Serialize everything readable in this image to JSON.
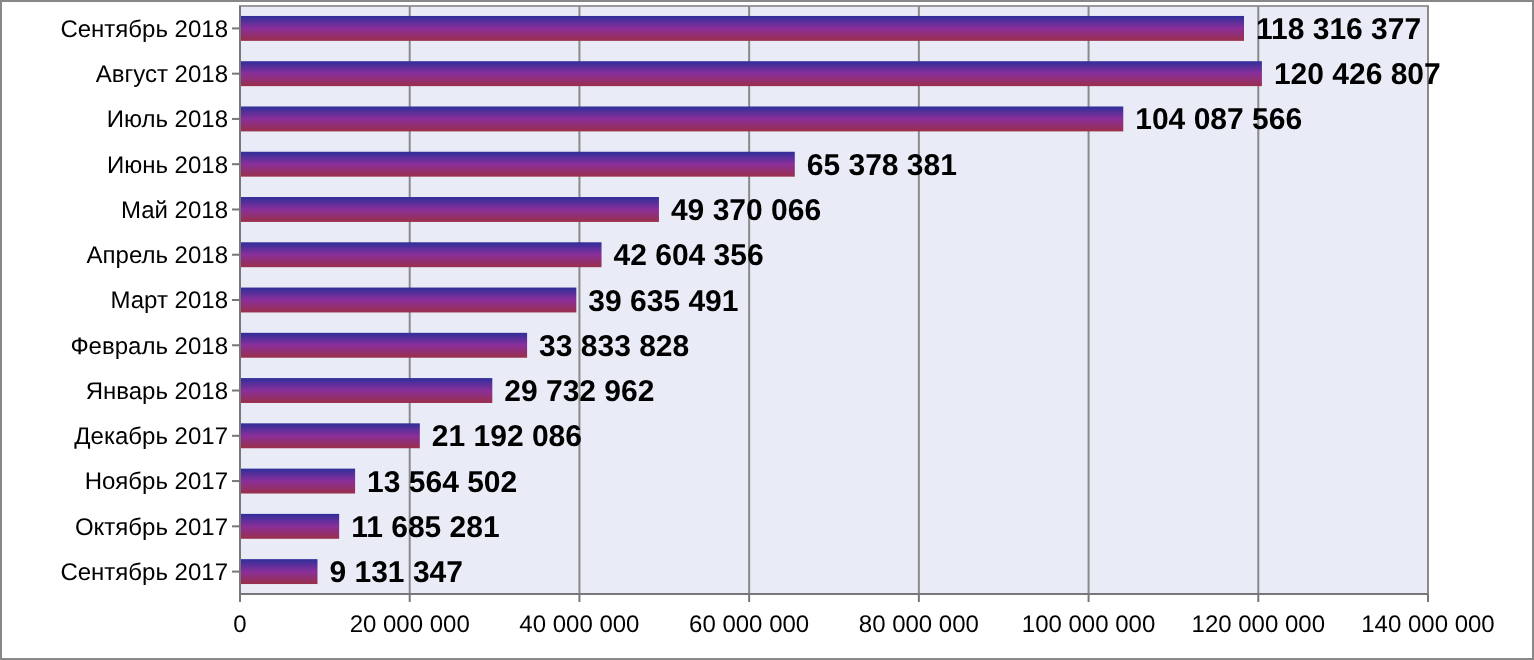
{
  "chart_data": {
    "type": "bar",
    "orientation": "horizontal",
    "categories": [
      "Сентябрь 2018",
      "Август 2018",
      "Июль 2018",
      "Июнь 2018",
      "Май 2018",
      "Апрель 2018",
      "Март 2018",
      "Февраль 2018",
      "Январь 2018",
      "Декабрь 2017",
      "Ноябрь 2017",
      "Октябрь 2017",
      "Сентябрь 2017"
    ],
    "values": [
      118316377,
      120426807,
      104087566,
      65378381,
      49370066,
      42604356,
      39635491,
      33833828,
      29732962,
      21192086,
      13564502,
      11685281,
      9131347
    ],
    "color": "#8a2f9a",
    "xlim": [
      0,
      140000000
    ],
    "xticks": [
      0,
      {
        "value": 20000000,
        "label": "20 000 000"
      },
      {
        "value": 40000000,
        "label": "40 000 000"
      },
      {
        "value": 60000000,
        "label": "60 000 000"
      },
      {
        "value": 80000000,
        "label": "80 000 000"
      },
      {
        "value": 100000000,
        "label": "100 000 000"
      },
      {
        "value": 120000000,
        "label": "120 000 000"
      },
      {
        "value": 140000000,
        "label": "140 000 000"
      }
    ],
    "grid": "x",
    "data_labels": true
  }
}
